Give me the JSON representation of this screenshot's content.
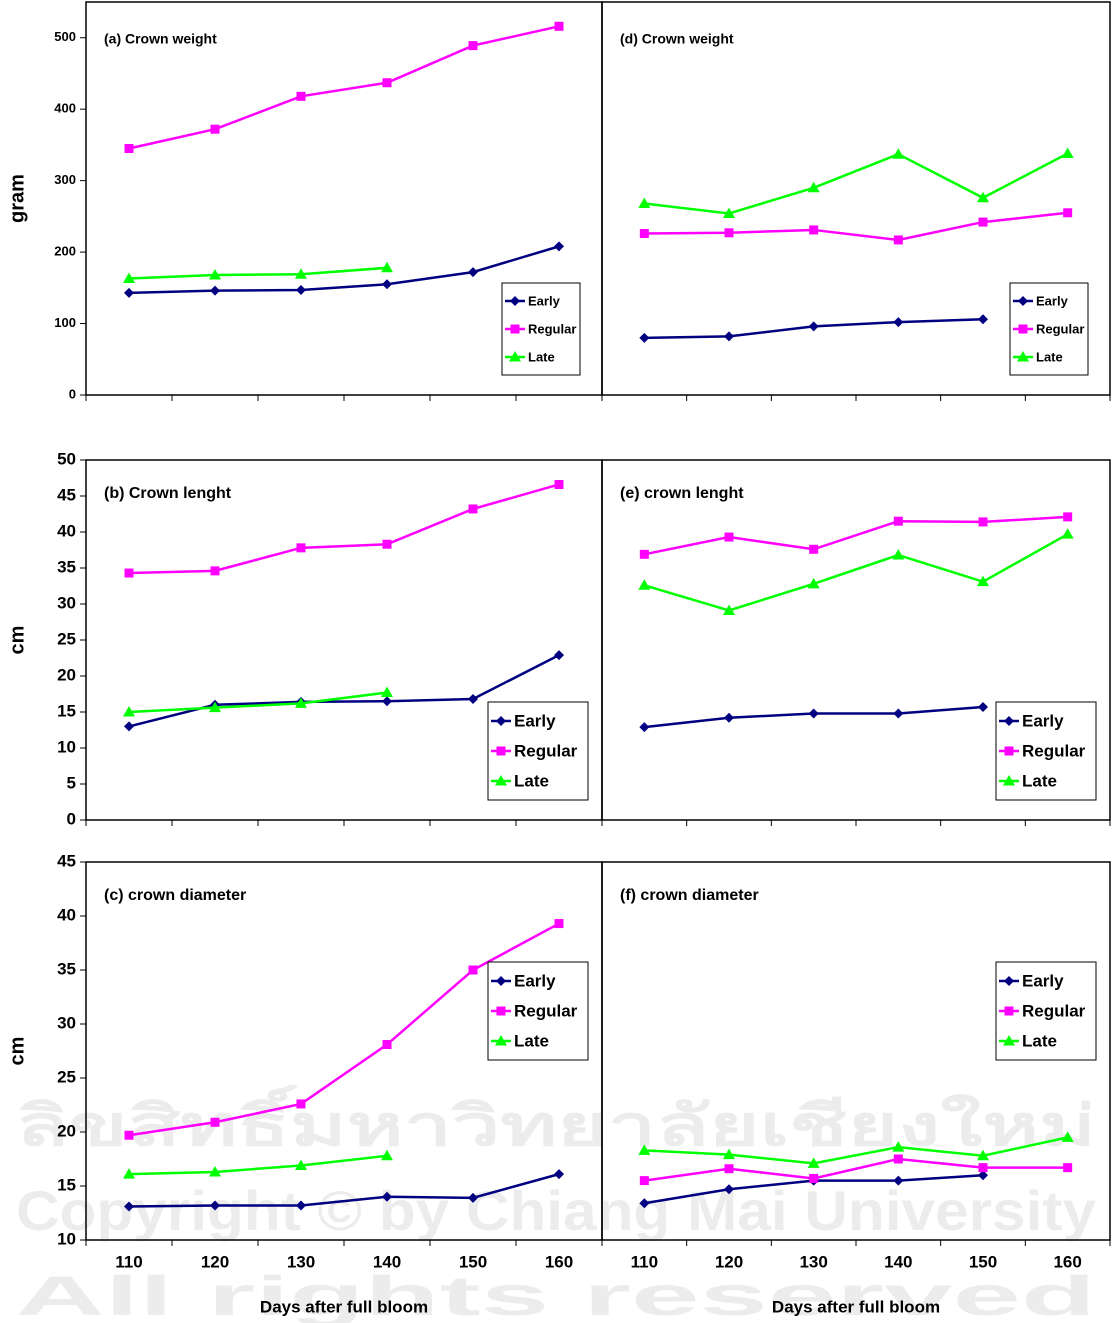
{
  "chart_data": [
    {
      "type": "line",
      "title": "(a) Crown weight",
      "ylabel": "gram",
      "categories": [
        null,
        null,
        null,
        null,
        null,
        null
      ],
      "ylim": [
        0,
        550
      ],
      "yticks": [
        0,
        100,
        200,
        300,
        400,
        500
      ],
      "legend": "lower right",
      "series": [
        {
          "name": "Early",
          "color": "#000080",
          "marker": "diamond",
          "values": [
            143,
            146,
            147,
            155,
            172,
            208
          ]
        },
        {
          "name": "Regular",
          "color": "#ff00ff",
          "marker": "square",
          "values": [
            345,
            372,
            418,
            437,
            489,
            516
          ]
        },
        {
          "name": "Late",
          "color": "#00ff00",
          "marker": "triangle",
          "values": [
            163,
            168,
            169,
            178,
            null,
            null
          ]
        }
      ]
    },
    {
      "type": "line",
      "title": "(d) Crown weight",
      "categories": [
        null,
        null,
        null,
        null,
        null,
        null
      ],
      "ylim": [
        0,
        550
      ],
      "legend": "lower right",
      "series": [
        {
          "name": "Early",
          "color": "#000080",
          "marker": "diamond",
          "values": [
            80,
            82,
            96,
            102,
            106,
            null
          ]
        },
        {
          "name": "Regular",
          "color": "#ff00ff",
          "marker": "square",
          "values": [
            226,
            227,
            231,
            217,
            242,
            255
          ]
        },
        {
          "name": "Late",
          "color": "#00ff00",
          "marker": "triangle",
          "values": [
            268,
            254,
            290,
            337,
            276,
            338
          ]
        }
      ]
    },
    {
      "type": "line",
      "title": "(b) Crown lenght",
      "ylabel": "cm",
      "categories": [
        null,
        null,
        null,
        null,
        null,
        null
      ],
      "ylim": [
        0,
        50
      ],
      "yticks": [
        0,
        5,
        10,
        15,
        20,
        25,
        30,
        35,
        40,
        45,
        50
      ],
      "legend": "lower right",
      "series": [
        {
          "name": "Early",
          "color": "#000080",
          "marker": "diamond",
          "values": [
            13,
            16,
            16.4,
            16.5,
            16.8,
            22.9
          ]
        },
        {
          "name": "Regular",
          "color": "#ff00ff",
          "marker": "square",
          "values": [
            34.3,
            34.6,
            37.8,
            38.3,
            43.2,
            46.6
          ]
        },
        {
          "name": "Late",
          "color": "#00ff00",
          "marker": "triangle",
          "values": [
            15,
            15.6,
            16.2,
            17.7,
            null,
            null
          ]
        }
      ]
    },
    {
      "type": "line",
      "title": "(e) crown lenght",
      "categories": [
        null,
        null,
        null,
        null,
        null,
        null
      ],
      "ylim": [
        0,
        50
      ],
      "legend": "lower right",
      "series": [
        {
          "name": "Early",
          "color": "#000080",
          "marker": "diamond",
          "values": [
            12.9,
            14.2,
            14.8,
            14.8,
            15.7,
            null
          ]
        },
        {
          "name": "Regular",
          "color": "#ff00ff",
          "marker": "square",
          "values": [
            36.9,
            39.3,
            37.6,
            41.5,
            41.4,
            42.1
          ]
        },
        {
          "name": "Late",
          "color": "#00ff00",
          "marker": "triangle",
          "values": [
            32.6,
            29.1,
            32.8,
            36.8,
            33.1,
            39.7
          ]
        }
      ]
    },
    {
      "type": "line",
      "title": "(c) crown diameter",
      "ylabel": "cm",
      "xlabel": "Days after full bloom",
      "categories": [
        "110",
        "120",
        "130",
        "140",
        "150",
        "160"
      ],
      "ylim": [
        10,
        45
      ],
      "yticks": [
        10,
        15,
        20,
        25,
        30,
        35,
        40,
        45
      ],
      "legend": "center right",
      "series": [
        {
          "name": "Early",
          "color": "#000080",
          "marker": "diamond",
          "values": [
            13.1,
            13.2,
            13.2,
            14,
            13.9,
            16.1
          ]
        },
        {
          "name": "Regular",
          "color": "#ff00ff",
          "marker": "square",
          "values": [
            19.7,
            20.9,
            22.6,
            28.1,
            35,
            39.3
          ]
        },
        {
          "name": "Late",
          "color": "#00ff00",
          "marker": "triangle",
          "values": [
            16.1,
            16.3,
            16.9,
            17.8,
            null,
            null
          ]
        }
      ]
    },
    {
      "type": "line",
      "title": "(f) crown diameter",
      "xlabel": "Days after full bloom",
      "categories": [
        "110",
        "120",
        "130",
        "140",
        "150",
        "160"
      ],
      "ylim": [
        10,
        45
      ],
      "legend": "upper right",
      "series": [
        {
          "name": "Early",
          "color": "#000080",
          "marker": "diamond",
          "values": [
            13.4,
            14.7,
            15.5,
            15.5,
            16,
            null
          ]
        },
        {
          "name": "Regular",
          "color": "#ff00ff",
          "marker": "square",
          "values": [
            15.5,
            16.6,
            15.7,
            17.5,
            16.7,
            16.7
          ]
        },
        {
          "name": "Late",
          "color": "#00ff00",
          "marker": "triangle",
          "values": [
            18.3,
            17.9,
            17.1,
            18.6,
            17.8,
            19.5
          ]
        }
      ]
    }
  ],
  "watermark": [
    "ลิขสิทธิ์มหาวิทยาลัยเชียงใหม่",
    "Copyright © by Chiang Mai University",
    "All rights reserved"
  ]
}
